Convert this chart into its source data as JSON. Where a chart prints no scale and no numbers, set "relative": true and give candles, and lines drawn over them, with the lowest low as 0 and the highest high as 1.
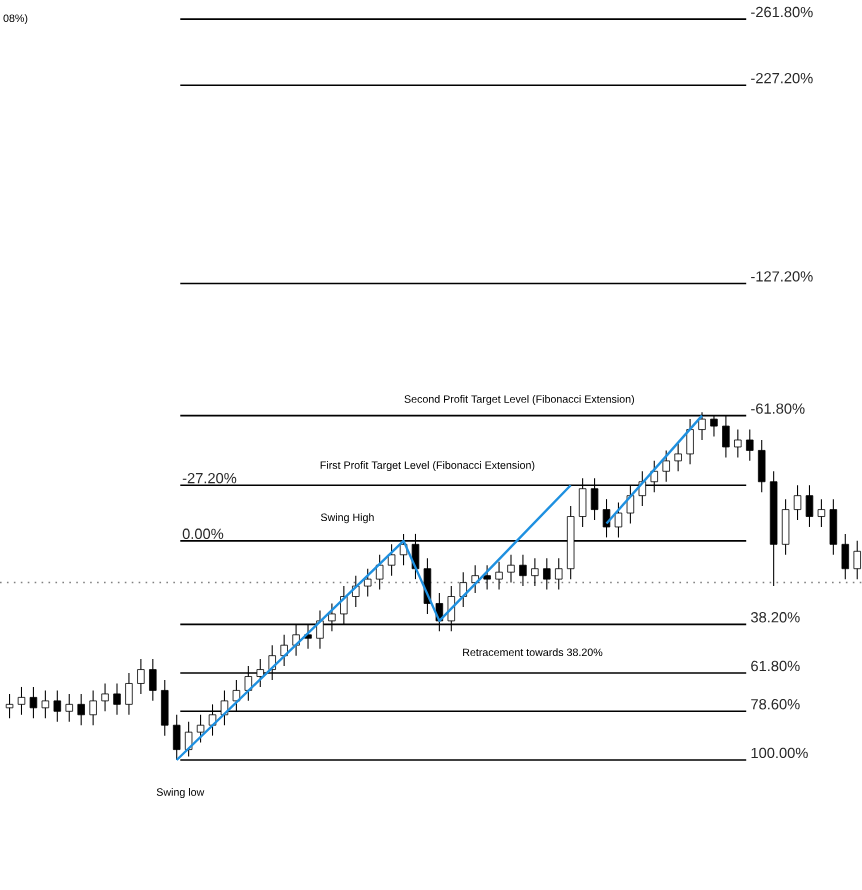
{
  "chart_data": {
    "type": "candlestick",
    "relative": true,
    "categories": [
      null,
      null,
      null,
      null,
      null,
      null,
      null,
      null,
      null,
      null,
      null,
      null,
      null,
      null,
      null,
      null,
      null,
      null,
      null,
      null,
      null,
      null,
      null,
      null,
      null,
      null,
      null,
      null,
      null,
      null,
      null,
      null,
      null,
      null,
      null,
      null,
      null,
      null,
      null,
      null,
      null,
      null,
      null,
      null,
      null,
      null,
      null,
      null,
      null,
      null,
      null,
      null,
      null,
      null,
      null,
      null,
      null,
      null,
      null,
      null,
      null,
      null,
      null,
      null,
      null,
      null,
      null,
      null,
      null,
      null,
      null,
      null
    ],
    "ohlc": [
      [
        0.15,
        0.19,
        0.12,
        0.16
      ],
      [
        0.16,
        0.21,
        0.13,
        0.18
      ],
      [
        0.18,
        0.21,
        0.12,
        0.15
      ],
      [
        0.15,
        0.2,
        0.12,
        0.17
      ],
      [
        0.17,
        0.2,
        0.11,
        0.14
      ],
      [
        0.14,
        0.19,
        0.11,
        0.16
      ],
      [
        0.16,
        0.19,
        0.1,
        0.13
      ],
      [
        0.13,
        0.2,
        0.1,
        0.17
      ],
      [
        0.17,
        0.22,
        0.14,
        0.19
      ],
      [
        0.19,
        0.22,
        0.13,
        0.16
      ],
      [
        0.16,
        0.25,
        0.13,
        0.22
      ],
      [
        0.22,
        0.29,
        0.19,
        0.26
      ],
      [
        0.26,
        0.29,
        0.17,
        0.2
      ],
      [
        0.2,
        0.23,
        0.07,
        0.1
      ],
      [
        0.1,
        0.13,
        0,
        0.03
      ],
      [
        0.03,
        0.11,
        0.01,
        0.08
      ],
      [
        0.08,
        0.13,
        0.05,
        0.1
      ],
      [
        0.1,
        0.16,
        0.07,
        0.13
      ],
      [
        0.13,
        0.2,
        0.1,
        0.17
      ],
      [
        0.17,
        0.23,
        0.14,
        0.2
      ],
      [
        0.2,
        0.27,
        0.17,
        0.24
      ],
      [
        0.24,
        0.29,
        0.21,
        0.26
      ],
      [
        0.26,
        0.33,
        0.23,
        0.3
      ],
      [
        0.3,
        0.36,
        0.27,
        0.33
      ],
      [
        0.33,
        0.39,
        0.3,
        0.36
      ],
      [
        0.36,
        0.39,
        0.32,
        0.35
      ],
      [
        0.35,
        0.43,
        0.32,
        0.4
      ],
      [
        0.4,
        0.45,
        0.37,
        0.42
      ],
      [
        0.42,
        0.5,
        0.39,
        0.47
      ],
      [
        0.47,
        0.53,
        0.44,
        0.5
      ],
      [
        0.5,
        0.55,
        0.47,
        0.52
      ],
      [
        0.52,
        0.59,
        0.49,
        0.56
      ],
      [
        0.56,
        0.62,
        0.53,
        0.59
      ],
      [
        0.59,
        0.65,
        0.56,
        0.62
      ],
      [
        0.62,
        0.65,
        0.52,
        0.55
      ],
      [
        0.55,
        0.58,
        0.42,
        0.45
      ],
      [
        0.45,
        0.48,
        0.37,
        0.4
      ],
      [
        0.4,
        0.5,
        0.37,
        0.47
      ],
      [
        0.47,
        0.54,
        0.44,
        0.51
      ],
      [
        0.51,
        0.56,
        0.48,
        0.53
      ],
      [
        0.53,
        0.56,
        0.49,
        0.52
      ],
      [
        0.52,
        0.57,
        0.49,
        0.54
      ],
      [
        0.54,
        0.59,
        0.51,
        0.56
      ],
      [
        0.56,
        0.59,
        0.5,
        0.53
      ],
      [
        0.53,
        0.58,
        0.5,
        0.55
      ],
      [
        0.55,
        0.58,
        0.49,
        0.52
      ],
      [
        0.52,
        0.58,
        0.49,
        0.55
      ],
      [
        0.55,
        0.73,
        0.52,
        0.7
      ],
      [
        0.7,
        0.81,
        0.67,
        0.78
      ],
      [
        0.78,
        0.81,
        0.69,
        0.72
      ],
      [
        0.72,
        0.75,
        0.64,
        0.67
      ],
      [
        0.67,
        0.74,
        0.64,
        0.71
      ],
      [
        0.71,
        0.79,
        0.68,
        0.76
      ],
      [
        0.76,
        0.83,
        0.73,
        0.8
      ],
      [
        0.8,
        0.86,
        0.77,
        0.83
      ],
      [
        0.83,
        0.89,
        0.8,
        0.86
      ],
      [
        0.86,
        0.91,
        0.83,
        0.88
      ],
      [
        0.88,
        0.98,
        0.85,
        0.95
      ],
      [
        0.95,
        1.0,
        0.92,
        0.98
      ],
      [
        0.98,
        0.99,
        0.93,
        0.96
      ],
      [
        0.96,
        0.99,
        0.87,
        0.9
      ],
      [
        0.9,
        0.95,
        0.87,
        0.92
      ],
      [
        0.92,
        0.95,
        0.86,
        0.89
      ],
      [
        0.89,
        0.92,
        0.77,
        0.8
      ],
      [
        0.8,
        0.83,
        0.5,
        0.62
      ],
      [
        0.62,
        0.75,
        0.59,
        0.72
      ],
      [
        0.72,
        0.79,
        0.69,
        0.76
      ],
      [
        0.76,
        0.79,
        0.67,
        0.7
      ],
      [
        0.7,
        0.75,
        0.67,
        0.72
      ],
      [
        0.72,
        0.75,
        0.59,
        0.62
      ],
      [
        0.62,
        0.65,
        0.52,
        0.55
      ],
      [
        0.55,
        0.63,
        0.52,
        0.6
      ]
    ],
    "series": [
      {
        "type": "line",
        "color": "#1e90e0",
        "values": [
          null,
          null,
          null,
          null,
          null,
          null,
          null,
          null,
          null,
          null,
          null,
          null,
          null,
          null,
          0,
          null,
          null,
          null,
          null,
          null,
          null,
          null,
          null,
          null,
          null,
          null,
          null,
          null,
          null,
          null,
          null,
          null,
          null,
          0.63,
          null,
          null,
          0.4,
          null,
          null,
          null,
          null,
          null,
          null,
          null,
          null,
          null,
          null,
          0.79,
          null,
          null,
          null,
          null,
          null,
          null,
          null,
          null,
          null,
          null,
          null,
          null,
          null,
          null,
          null,
          null,
          null,
          null,
          null,
          null,
          null,
          null,
          null,
          null
        ]
      },
      {
        "type": "line",
        "color": "#1e90e0",
        "values": [
          null,
          null,
          null,
          null,
          null,
          null,
          null,
          null,
          null,
          null,
          null,
          null,
          null,
          null,
          null,
          null,
          null,
          null,
          null,
          null,
          null,
          null,
          null,
          null,
          null,
          null,
          null,
          null,
          null,
          null,
          null,
          null,
          null,
          null,
          null,
          null,
          null,
          null,
          null,
          null,
          null,
          null,
          null,
          null,
          null,
          null,
          null,
          null,
          null,
          null,
          0.68,
          null,
          null,
          null,
          null,
          null,
          null,
          null,
          0.99,
          null,
          null,
          null,
          null,
          null,
          null,
          null,
          null,
          null,
          null,
          null,
          null,
          null
        ]
      }
    ],
    "ref_lines": [
      {
        "axis": "y",
        "value": 2.13,
        "color": "#000000",
        "line_style": "solid"
      },
      {
        "axis": "y",
        "value": 1.94,
        "color": "#000000",
        "line_style": "solid"
      },
      {
        "axis": "y",
        "value": 1.37,
        "color": "#000000",
        "line_style": "solid"
      },
      {
        "axis": "y",
        "value": 0.99,
        "color": "#000000",
        "line_style": "solid"
      },
      {
        "axis": "y",
        "value": 0.79,
        "color": "#000000",
        "line_style": "solid"
      },
      {
        "axis": "y",
        "value": 0.63,
        "color": "#000000",
        "line_style": "solid"
      },
      {
        "axis": "y",
        "value": 0.51,
        "color": "#808080",
        "line_style": "dotted"
      },
      {
        "axis": "y",
        "value": 0.39,
        "color": "#000000",
        "line_style": "solid"
      },
      {
        "axis": "y",
        "value": 0.25,
        "color": "#000000",
        "line_style": "solid"
      },
      {
        "axis": "y",
        "value": 0.14,
        "color": "#000000",
        "line_style": "solid"
      },
      {
        "axis": "y",
        "value": 0,
        "color": "#000000",
        "line_style": "solid"
      }
    ],
    "annotations": [
      "08%)",
      "Second Profit Target Level (Fibonacci Extension)",
      "First Profit Target Level (Fibonacci Extension)",
      "Swing High",
      "Retracement towards 38.20%",
      "Swing low",
      "-261.80%",
      "-227.20%",
      "-127.20%",
      "-61.80%",
      "-27.20%",
      "0.00%",
      "38.20%",
      "61.80%",
      "78.60%",
      "100.00%"
    ]
  }
}
